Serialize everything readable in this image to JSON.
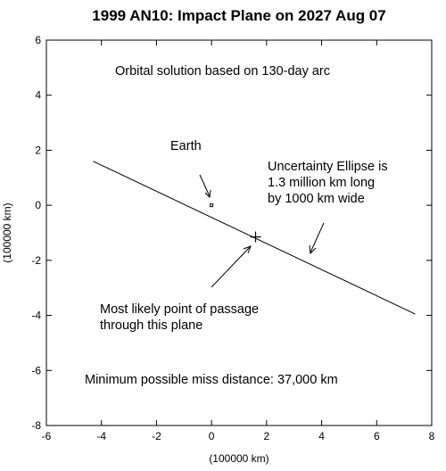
{
  "chart_data": {
    "type": "scatter",
    "title": "1999 AN10: Impact Plane on 2027 Aug 07",
    "xlabel": "(100000 km)",
    "ylabel": "(100000 km)",
    "xlim": [
      -6,
      8
    ],
    "ylim": [
      -8,
      6
    ],
    "xticks": [
      "-6",
      "-4",
      "-2",
      "0",
      "2",
      "4",
      "6",
      "8"
    ],
    "yticks": [
      "-8",
      "-6",
      "-4",
      "-2",
      "0",
      "2",
      "4",
      "6"
    ],
    "grid": false,
    "series": [
      {
        "type": "line",
        "points": [
          [
            -4.3,
            1.6
          ],
          [
            7.4,
            -3.95
          ]
        ]
      }
    ],
    "markers": {
      "earth": [
        0.0,
        0.0
      ],
      "most_likely": [
        1.6,
        -1.15
      ]
    },
    "annotations": {
      "orbital_solution": "Orbital solution based on 130-day arc",
      "earth_label": "Earth",
      "ellipse_line1": "Uncertainty Ellipse is",
      "ellipse_line2": "1.3 million km long",
      "ellipse_line3": "by 1000 km wide",
      "likely_line1": "Most likely point of passage",
      "likely_line2": "through this plane",
      "min_distance": "Minimum possible miss distance: 37,000 km"
    }
  }
}
